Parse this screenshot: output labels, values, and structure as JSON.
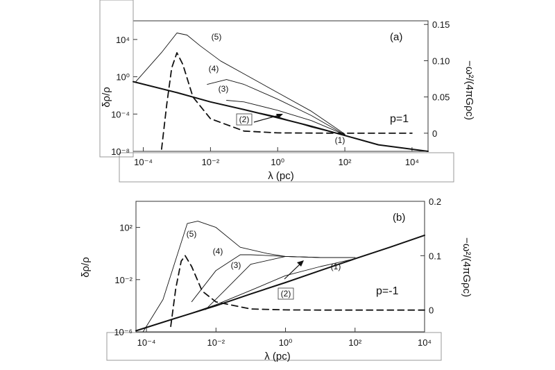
{
  "chart_data": [
    {
      "type": "line",
      "panel_label": "(a)",
      "annotation": "p=1",
      "xlabel": "λ (pc)",
      "ylabel": "δρ/ρ",
      "ylabel_right": "−ω²/(4πGρc)",
      "x_scale": "log",
      "y_scale": "log",
      "xlim": [
        5e-05,
        30000
      ],
      "ylim": [
        1e-08,
        1000000.0
      ],
      "y2lim": [
        -0.025,
        0.155
      ],
      "x_ticks": [
        "10⁻⁴",
        "10⁻²",
        "10⁰",
        "10²",
        "10⁴"
      ],
      "y_ticks": [
        "10⁴",
        "10⁰",
        "10⁻⁴",
        "10⁻⁸"
      ],
      "y2_ticks": [
        "0.15",
        "0.10",
        "0.05",
        "0"
      ],
      "x_tick_values": [
        0.0001,
        0.01,
        1,
        100,
        10000
      ],
      "y_tick_values": [
        10000,
        1,
        0.0001,
        1e-08
      ],
      "y2_tick_values": [
        0.15,
        0.1,
        0.05,
        0
      ],
      "series": [
        {
          "name": "(1)",
          "style": "thick",
          "x": [
            5e-05,
            0.001,
            0.01,
            0.1,
            1,
            10,
            100,
            1000,
            30000
          ],
          "y": [
            0.3,
            0.02,
            0.002,
            0.0003,
            4e-05,
            5e-06,
            5e-07,
            5e-08,
            1e-08
          ]
        },
        {
          "name": "(2)",
          "style": "thin",
          "x": [
            0.3,
            1,
            10,
            100
          ],
          "y": [
            0.00013,
            5e-05,
            4e-06,
            5e-07
          ]
        },
        {
          "name": "(3)",
          "style": "thin",
          "x": [
            0.03,
            0.1,
            1,
            10,
            100
          ],
          "y": [
            0.003,
            0.002,
            0.00025,
            2e-05,
            6e-07
          ]
        },
        {
          "name": "(4)",
          "style": "thin",
          "x": [
            0.008,
            0.03,
            0.1,
            1,
            10,
            100
          ],
          "y": [
            0.15,
            0.5,
            0.15,
            0.004,
            7e-05,
            6e-07
          ]
        },
        {
          "name": "(5)",
          "style": "thin",
          "x": [
            6e-05,
            0.00035,
            0.001,
            0.002,
            0.005,
            0.02,
            0.1,
            1,
            10,
            100
          ],
          "y": [
            0.3,
            400,
            50000,
            30000,
            2000,
            50,
            2,
            0.02,
            0.0002,
            7e-07
          ]
        },
        {
          "name": "−ω²/(4πGρc)",
          "style": "dashed",
          "axis": "right",
          "x": [
            0.00035,
            0.0005,
            0.0007,
            0.001,
            0.0015,
            0.003,
            0.01,
            0.1,
            1,
            10,
            100,
            10000
          ],
          "y": [
            -0.022,
            0.04,
            0.09,
            0.111,
            0.095,
            0.05,
            0.02,
            0.003,
            0.0005,
            0.0002,
            0,
            0
          ]
        }
      ]
    },
    {
      "type": "line",
      "panel_label": "(b)",
      "annotation": "p=-1",
      "xlabel": "λ (pc)",
      "ylabel": "δρ/ρ",
      "ylabel_right": "−ω²/(4πGρc)",
      "x_scale": "log",
      "y_scale": "log",
      "xlim": [
        5e-05,
        10000
      ],
      "ylim": [
        1e-06,
        10000.0
      ],
      "y2lim": [
        -0.04,
        0.2
      ],
      "x_ticks": [
        "10⁻⁴",
        "10⁻²",
        "10⁰",
        "10²",
        "10⁴"
      ],
      "y_ticks": [
        "10²",
        "10⁻²",
        "10⁻⁶"
      ],
      "y2_ticks": [
        "0.2",
        "0.1",
        "0"
      ],
      "x_tick_values": [
        0.0001,
        0.01,
        1,
        100,
        10000
      ],
      "y_tick_values": [
        100,
        0.01,
        1e-06
      ],
      "y2_tick_values": [
        0.2,
        0.1,
        0
      ],
      "series": [
        {
          "name": "(1)",
          "style": "thick",
          "x": [
            5e-05,
            0.001,
            0.01,
            0.1,
            1,
            10,
            100,
            1000,
            10000
          ],
          "y": [
            1.2e-06,
            1.5e-05,
            0.0001,
            0.0008,
            0.006,
            0.05,
            0.4,
            3,
            25
          ]
        },
        {
          "name": "(2)",
          "style": "thin",
          "x": [
            0.001,
            0.01,
            0.1,
            1,
            10,
            100
          ],
          "y": [
            1.5e-05,
            0.00012,
            0.0015,
            0.02,
            0.1,
            0.4
          ]
        },
        {
          "name": "(3)",
          "style": "thin",
          "x": [
            0.005,
            0.02,
            0.1,
            1,
            10,
            100
          ],
          "y": [
            5e-05,
            0.002,
            0.15,
            0.6,
            0.5,
            0.5
          ]
        },
        {
          "name": "(4)",
          "style": "thin",
          "x": [
            0.002,
            0.01,
            0.05,
            0.1,
            1,
            10,
            100
          ],
          "y": [
            0.0002,
            0.05,
            0.8,
            0.8,
            0.6,
            0.5,
            0.5
          ]
        },
        {
          "name": "(5)",
          "style": "thin",
          "x": [
            8e-05,
            0.0003,
            0.0015,
            0.003,
            0.01,
            0.05,
            0.3,
            1,
            10,
            100
          ],
          "y": [
            1e-06,
            0.0003,
            200,
            300,
            100,
            3,
            1,
            0.6,
            0.5,
            0.5
          ]
        },
        {
          "name": "−ω²/(4πGρc)",
          "style": "dashed",
          "axis": "right",
          "x": [
            0.0005,
            0.0007,
            0.001,
            0.0013,
            0.002,
            0.004,
            0.01,
            0.1,
            1,
            10,
            100,
            10000
          ],
          "y": [
            -0.03,
            0.04,
            0.09,
            0.1,
            0.08,
            0.035,
            0.015,
            0.002,
            0.0003,
            0,
            0,
            0
          ]
        }
      ]
    }
  ]
}
